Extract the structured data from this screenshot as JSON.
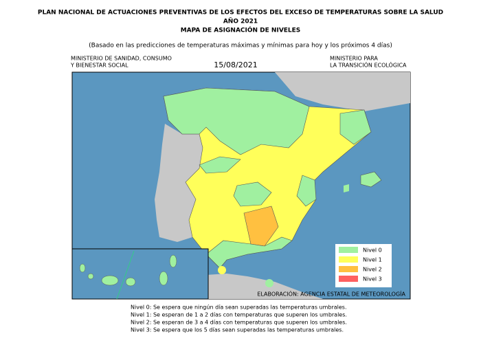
{
  "header": {
    "title_lines": [
      "PLAN NACIONAL DE ACTUACIONES PREVENTIVAS DE LOS EFECTOS DEL EXCESO DE TEMPERATURAS SOBRE LA SALUD",
      "AÑO 2021",
      "MAPA DE ASIGNACIÓN DE NIVELES"
    ],
    "subtitle": "(Basado en las predicciones de temperaturas máximas y mínimas para hoy y los próximos 4 días)",
    "left": [
      "MINISTERIO DE SANIDAD, CONSUMO",
      "Y BIENESTAR SOCIAL"
    ],
    "date": "15/08/2021",
    "right": [
      "MINISTERIO PARA",
      "LA TRANSICIÓN ECOLÓGICA"
    ]
  },
  "legend": [
    {
      "label": "Nivel 0",
      "color": "#a0f0a0"
    },
    {
      "label": "Nivel 1",
      "color": "#ffff5a"
    },
    {
      "label": "Nivel 2",
      "color": "#ffc040"
    },
    {
      "label": "Nivel 3",
      "color": "#ff6060"
    }
  ],
  "credit": "ELABORACIÓN: AGENCIA ESTATAL DE METEOROLOGÍA",
  "notes": [
    "Nivel 0: Se espera que ningún día sean superadas las temperaturas umbrales.",
    "Nivel 1: Se esperan de 1 a 2 días con temperaturas que superen los umbrales.",
    "Nivel 2: Se esperan de 3 a 4 días con temperaturas que superen los umbrales.",
    "Nivel 3: Se espera que los 5 días sean superadas las temperaturas umbrales."
  ]
}
